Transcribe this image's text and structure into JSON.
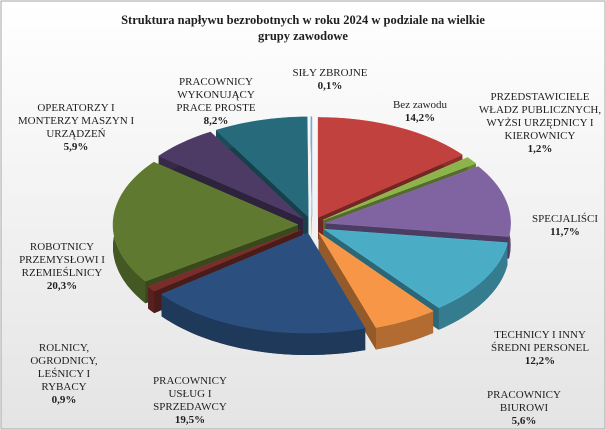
{
  "chart_data": {
    "type": "pie3d",
    "title": "Struktura napływu bezrobotnych  w roku 2024 w podziale na wielkie grupy zawodowe",
    "categories": [
      "Bez zawodu",
      "PRZEDSTAWICIELE WŁADZ PUBLICZNYCH, WYŻSI URZĘDNICY I KIEROWNICY",
      "SPECJALIŚCI",
      "TECHNICY I INNY ŚREDNI PERSONEL",
      "PRACOWNICY BIUROWI",
      "PRACOWNICY USŁUG I SPRZEDAWCY",
      "ROLNICY, OGRODNICY, LEŚNICY I RYBACY",
      "ROBOTNICY PRZEMYSŁOWI I RZEMIEŚLNICY",
      "OPERATORZY I MONTERZY MASZYN I URZĄDZEŃ",
      "PRACOWNICY WYKONUJĄCY PRACE PROSTE",
      "SIŁY ZBROJNE"
    ],
    "values": [
      14.2,
      1.2,
      11.7,
      12.2,
      5.6,
      19.5,
      0.9,
      20.3,
      5.9,
      8.2,
      0.1
    ],
    "value_labels": [
      "14,2%",
      "1,2%",
      "11,7%",
      "12,2%",
      "5,6%",
      "19,5%",
      "0,9%",
      "20,3%",
      "5,9%",
      "8,2%",
      "0,1%"
    ],
    "colors": [
      "#c0413d",
      "#8db34c",
      "#8064a2",
      "#4bacc6",
      "#f79646",
      "#2b4f7e",
      "#7a2e2b",
      "#5f7a30",
      "#4d3b66",
      "#276a7c",
      "#7aa2d0"
    ]
  }
}
